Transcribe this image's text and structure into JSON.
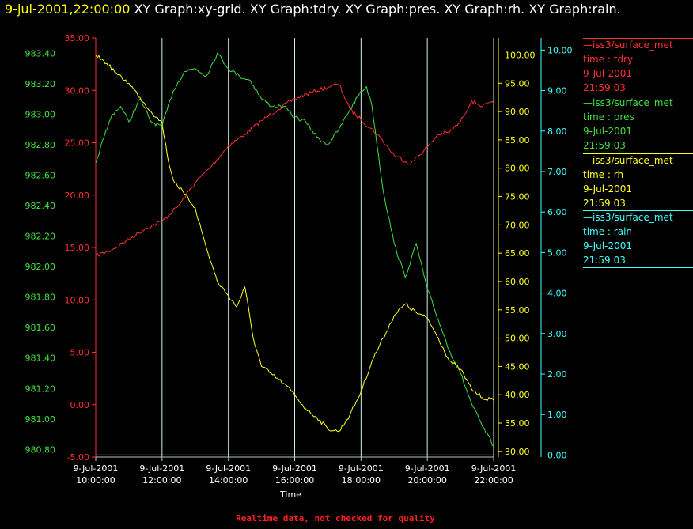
{
  "header": {
    "timestamp": "9-jul-2001,22:00:00",
    "graphs": "XY Graph:xy-grid.  XY Graph:tdry.  XY Graph:pres.  XY Graph:rh.  XY Graph:rain."
  },
  "footer": {
    "quality_note": "Realtime data, not checked for quality"
  },
  "colors": {
    "tdry": "#ff3030",
    "pres": "#40e040",
    "rh": "#ffff20",
    "rain": "#40ffff",
    "grid": "#c8f0f0",
    "background": "#000000"
  },
  "legend": [
    {
      "line": "iss3/surface_met",
      "field": "time : tdry",
      "date": "9-Jul-2001",
      "time": "21:59:03",
      "color": "#ff3030"
    },
    {
      "line": "iss3/surface_met",
      "field": "time : pres",
      "date": "9-Jul-2001",
      "time": "21:59:03",
      "color": "#40e040"
    },
    {
      "line": "iss3/surface_met",
      "field": "time : rh",
      "date": "9-Jul-2001",
      "time": "21:59:03",
      "color": "#ffff20"
    },
    {
      "line": "iss3/surface_met",
      "field": "time : rain",
      "date": "9-Jul-2001",
      "time": "21:59:03",
      "color": "#40ffff"
    }
  ],
  "chart_data": {
    "type": "line",
    "xlabel": "Time",
    "x_ticks": [
      {
        "date": "9-Jul-2001",
        "time": "10:00:00"
      },
      {
        "date": "9-Jul-2001",
        "time": "12:00:00"
      },
      {
        "date": "9-Jul-2001",
        "time": "14:00:00"
      },
      {
        "date": "9-Jul-2001",
        "time": "16:00:00"
      },
      {
        "date": "9-Jul-2001",
        "time": "18:00:00"
      },
      {
        "date": "9-Jul-2001",
        "time": "20:00:00"
      },
      {
        "date": "9-Jul-2001",
        "time": "22:00:00"
      }
    ],
    "xlim": [
      "9-Jul-2001 10:00:00",
      "9-Jul-2001 22:00:00"
    ],
    "grid": "vertical",
    "axes": [
      {
        "name": "tdry",
        "side": "left",
        "ylim": [
          -5,
          35
        ],
        "ticks": [
          "35.00",
          "30.00",
          "25.00",
          "20.00",
          "15.00",
          "10.00",
          "5.00",
          "0.00",
          "-5.00"
        ]
      },
      {
        "name": "pres",
        "side": "left",
        "ylim": [
          980.75,
          983.5
        ],
        "ticks": [
          "983.40",
          "983.20",
          "983.00",
          "982.80",
          "982.60",
          "982.40",
          "982.20",
          "982.00",
          "981.80",
          "981.60",
          "981.40",
          "981.20",
          "981.00",
          "980.80"
        ]
      },
      {
        "name": "rh",
        "side": "right",
        "ylim": [
          29,
          103
        ],
        "ticks": [
          "100.00",
          "95.00",
          "90.00",
          "85.00",
          "80.00",
          "75.00",
          "70.00",
          "65.00",
          "60.00",
          "55.00",
          "50.00",
          "45.00",
          "40.00",
          "35.00",
          "30.00"
        ]
      },
      {
        "name": "rain",
        "side": "right",
        "ylim": [
          -0.05,
          10.3
        ],
        "ticks": [
          "10.00",
          "9.00",
          "8.00",
          "7.00",
          "6.00",
          "5.00",
          "4.00",
          "3.00",
          "2.00",
          "1.00",
          "0.00"
        ]
      }
    ],
    "series": [
      {
        "name": "time : tdry",
        "x": [
          "10:00",
          "10:30",
          "11:00",
          "11:30",
          "12:00",
          "12:30",
          "13:00",
          "13:30",
          "14:00",
          "14:30",
          "15:00",
          "15:30",
          "16:00",
          "16:30",
          "17:00",
          "17:20",
          "17:40",
          "18:00",
          "18:30",
          "19:00",
          "19:30",
          "20:00",
          "20:20",
          "20:40",
          "21:00",
          "21:20",
          "21:40",
          "22:00"
        ],
        "y": [
          14.2,
          14.8,
          15.8,
          16.8,
          17.5,
          19.0,
          21.2,
          22.8,
          24.7,
          25.8,
          27.1,
          28.2,
          29.2,
          29.8,
          30.3,
          30.6,
          28.2,
          27.2,
          25.8,
          23.8,
          23.0,
          24.6,
          25.8,
          26.0,
          27.0,
          29.0,
          28.5,
          28.8
        ]
      },
      {
        "name": "time : pres",
        "x": [
          "10:00",
          "10:15",
          "10:30",
          "10:45",
          "11:00",
          "11:20",
          "11:40",
          "12:00",
          "12:20",
          "12:40",
          "13:00",
          "13:20",
          "13:40",
          "14:00",
          "14:20",
          "14:40",
          "15:00",
          "15:20",
          "15:40",
          "16:00",
          "16:20",
          "16:40",
          "17:00",
          "17:20",
          "17:40",
          "18:00",
          "18:10",
          "18:20",
          "18:40",
          "19:00",
          "19:20",
          "19:40",
          "20:00",
          "20:20",
          "20:40",
          "21:00",
          "21:20",
          "21:40",
          "22:00"
        ],
        "y": [
          982.68,
          982.85,
          983.0,
          983.05,
          982.95,
          983.1,
          982.95,
          982.92,
          983.15,
          983.28,
          983.3,
          983.25,
          983.4,
          983.3,
          983.25,
          983.22,
          983.1,
          983.05,
          983.05,
          982.98,
          982.95,
          982.85,
          982.8,
          982.9,
          983.03,
          983.15,
          983.18,
          983.05,
          982.5,
          982.15,
          981.93,
          982.15,
          981.85,
          981.65,
          981.45,
          981.3,
          981.1,
          980.95,
          980.82
        ]
      },
      {
        "name": "time : rh",
        "x": [
          "10:00",
          "10:20",
          "10:40",
          "11:00",
          "11:20",
          "11:40",
          "12:00",
          "12:10",
          "12:20",
          "12:40",
          "13:00",
          "13:20",
          "13:40",
          "14:00",
          "14:15",
          "14:30",
          "14:45",
          "15:00",
          "15:20",
          "15:40",
          "16:00",
          "16:20",
          "16:40",
          "17:00",
          "17:20",
          "17:40",
          "18:00",
          "18:20",
          "18:40",
          "19:00",
          "19:20",
          "19:40",
          "20:00",
          "20:20",
          "20:40",
          "21:00",
          "21:20",
          "21:40",
          "22:00"
        ],
        "y": [
          100.0,
          98.5,
          96.5,
          95.0,
          92.5,
          90.0,
          88.0,
          82.0,
          78.0,
          75.5,
          73.0,
          66.0,
          60.0,
          57.5,
          55.5,
          59.0,
          50.0,
          45.0,
          43.5,
          42.0,
          40.0,
          37.5,
          36.0,
          34.0,
          33.5,
          36.5,
          40.5,
          46.0,
          50.0,
          54.0,
          56.0,
          54.5,
          53.5,
          50.0,
          46.0,
          44.5,
          41.0,
          39.5,
          39.0
        ]
      },
      {
        "name": "time : rain",
        "x": [
          "10:00",
          "22:00"
        ],
        "y": [
          0.0,
          0.0
        ]
      }
    ]
  }
}
